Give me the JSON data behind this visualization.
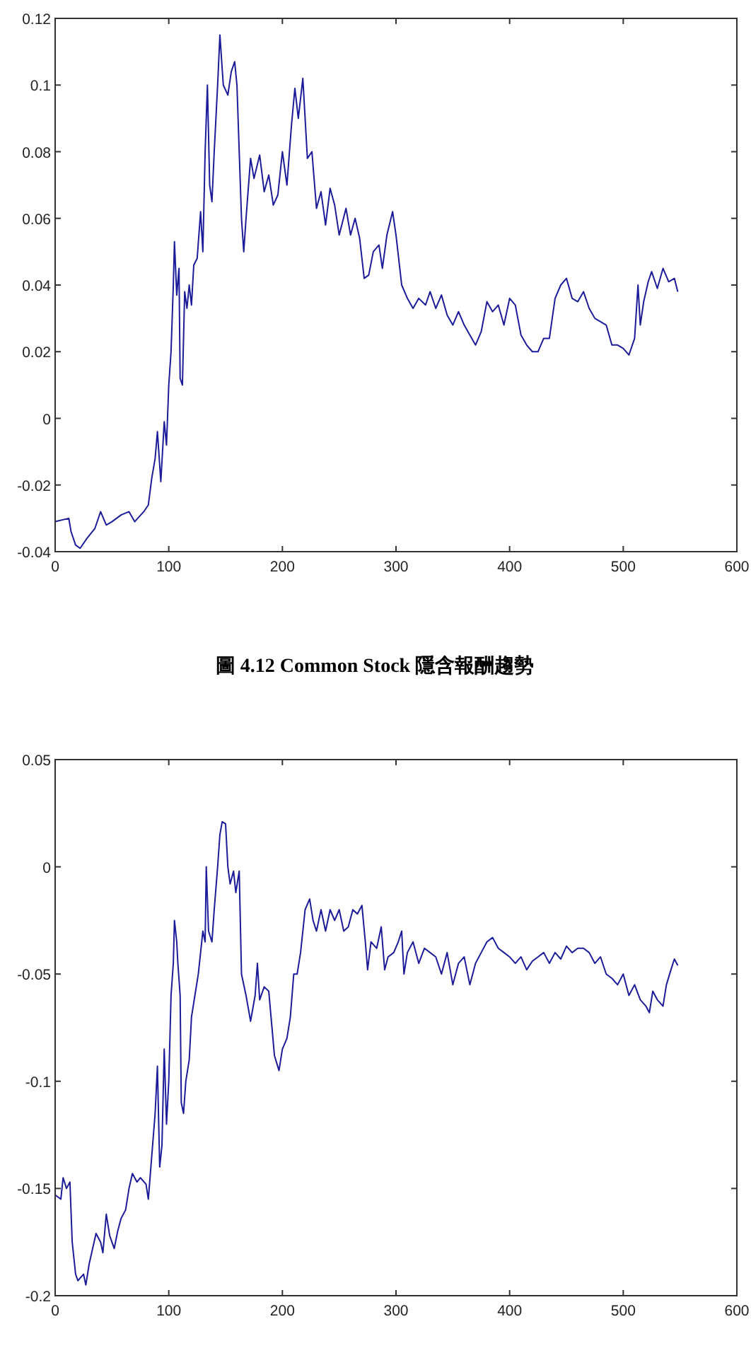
{
  "chart_data": [
    {
      "type": "line",
      "annotations": [
        "圖 4.12 Common Stock 隱含報酬趨勢"
      ],
      "xlim": [
        0,
        600
      ],
      "xticks": [
        0,
        100,
        200,
        300,
        400,
        500,
        600
      ],
      "ylim": [
        -0.04,
        0.12
      ],
      "yticks": [
        -0.04,
        -0.02,
        0,
        0.02,
        0.04,
        0.06,
        0.08,
        0.1,
        0.12
      ],
      "grid": false,
      "line_style": "solid",
      "series": [
        {
          "color": "#1c1c9a",
          "x": [
            0,
            12,
            14,
            18,
            22,
            28,
            35,
            40,
            45,
            50,
            58,
            65,
            70,
            78,
            82,
            85,
            88,
            90,
            93,
            96,
            98,
            100,
            102,
            104,
            105,
            107,
            109,
            110,
            112,
            114,
            116,
            118,
            120,
            122,
            125,
            128,
            130,
            132,
            134,
            136,
            138,
            140,
            143,
            145,
            148,
            152,
            155,
            158,
            160,
            162,
            164,
            166,
            168,
            172,
            175,
            180,
            184,
            188,
            192,
            196,
            200,
            204,
            208,
            211,
            214,
            218,
            222,
            226,
            230,
            234,
            238,
            242,
            246,
            250,
            256,
            260,
            264,
            268,
            272,
            276,
            280,
            285,
            288,
            292,
            297,
            300,
            305,
            310,
            315,
            320,
            326,
            330,
            335,
            340,
            345,
            350,
            355,
            360,
            365,
            370,
            375,
            380,
            385,
            390,
            395,
            400,
            405,
            410,
            415,
            420,
            425,
            430,
            435,
            440,
            445,
            450,
            455,
            460,
            465,
            470,
            475,
            480,
            485,
            490,
            495,
            500,
            505,
            510,
            513,
            515,
            518,
            522,
            525,
            530,
            535,
            540,
            545,
            548
          ],
          "values": [
            -0.031,
            -0.03,
            -0.034,
            -0.038,
            -0.039,
            -0.036,
            -0.033,
            -0.028,
            -0.032,
            -0.031,
            -0.029,
            -0.028,
            -0.031,
            -0.028,
            -0.026,
            -0.018,
            -0.012,
            -0.004,
            -0.019,
            -0.001,
            -0.008,
            0.01,
            0.02,
            0.04,
            0.053,
            0.037,
            0.045,
            0.012,
            0.01,
            0.038,
            0.033,
            0.04,
            0.034,
            0.046,
            0.048,
            0.062,
            0.05,
            0.08,
            0.1,
            0.07,
            0.065,
            0.08,
            0.1,
            0.115,
            0.1,
            0.097,
            0.104,
            0.107,
            0.1,
            0.08,
            0.06,
            0.05,
            0.06,
            0.078,
            0.072,
            0.079,
            0.068,
            0.073,
            0.064,
            0.067,
            0.08,
            0.07,
            0.088,
            0.099,
            0.09,
            0.102,
            0.078,
            0.08,
            0.063,
            0.068,
            0.058,
            0.069,
            0.064,
            0.055,
            0.063,
            0.055,
            0.06,
            0.054,
            0.042,
            0.043,
            0.05,
            0.052,
            0.045,
            0.055,
            0.062,
            0.055,
            0.04,
            0.036,
            0.033,
            0.036,
            0.034,
            0.038,
            0.033,
            0.037,
            0.031,
            0.028,
            0.032,
            0.028,
            0.025,
            0.022,
            0.026,
            0.035,
            0.032,
            0.034,
            0.028,
            0.036,
            0.034,
            0.025,
            0.022,
            0.02,
            0.02,
            0.024,
            0.024,
            0.036,
            0.04,
            0.042,
            0.036,
            0.035,
            0.038,
            0.033,
            0.03,
            0.029,
            0.028,
            0.022,
            0.022,
            0.021,
            0.019,
            0.024,
            0.04,
            0.028,
            0.035,
            0.041,
            0.044,
            0.039,
            0.045,
            0.041,
            0.042,
            0.038
          ]
        }
      ]
    },
    {
      "type": "line",
      "xlim": [
        0,
        600
      ],
      "xticks": [
        0,
        100,
        200,
        300,
        400,
        500,
        600
      ],
      "ylim": [
        -0.2,
        0.05
      ],
      "yticks": [
        -0.2,
        -0.15,
        -0.1,
        -0.05,
        0,
        0.05
      ],
      "grid": false,
      "line_style": "solid",
      "series": [
        {
          "color": "#1c1c9a",
          "x": [
            0,
            5,
            7,
            10,
            13,
            15,
            18,
            20,
            25,
            27,
            30,
            33,
            36,
            40,
            42,
            45,
            48,
            52,
            55,
            58,
            62,
            65,
            68,
            72,
            75,
            80,
            82,
            85,
            88,
            90,
            92,
            94,
            96,
            98,
            100,
            102,
            104,
            105,
            107,
            108,
            110,
            111,
            113,
            115,
            118,
            120,
            123,
            126,
            128,
            130,
            132,
            133,
            135,
            138,
            140,
            143,
            145,
            147,
            150,
            152,
            154,
            157,
            159,
            162,
            164,
            168,
            172,
            176,
            178,
            180,
            184,
            188,
            190,
            193,
            197,
            200,
            204,
            207,
            210,
            213,
            216,
            220,
            224,
            227,
            230,
            234,
            238,
            242,
            246,
            250,
            254,
            258,
            262,
            266,
            270,
            273,
            275,
            278,
            283,
            287,
            290,
            293,
            298,
            302,
            305,
            307,
            310,
            315,
            320,
            325,
            330,
            335,
            340,
            345,
            350,
            355,
            360,
            365,
            370,
            375,
            380,
            385,
            390,
            395,
            400,
            405,
            410,
            415,
            420,
            425,
            430,
            435,
            440,
            445,
            450,
            455,
            460,
            465,
            470,
            475,
            480,
            485,
            490,
            495,
            500,
            505,
            510,
            515,
            520,
            523,
            526,
            530,
            535,
            538,
            542,
            545,
            548
          ],
          "values": [
            -0.153,
            -0.155,
            -0.145,
            -0.15,
            -0.147,
            -0.175,
            -0.19,
            -0.193,
            -0.19,
            -0.195,
            -0.185,
            -0.178,
            -0.171,
            -0.175,
            -0.18,
            -0.162,
            -0.172,
            -0.178,
            -0.17,
            -0.164,
            -0.16,
            -0.15,
            -0.143,
            -0.147,
            -0.145,
            -0.148,
            -0.155,
            -0.135,
            -0.115,
            -0.093,
            -0.14,
            -0.13,
            -0.085,
            -0.12,
            -0.1,
            -0.06,
            -0.045,
            -0.025,
            -0.035,
            -0.045,
            -0.06,
            -0.11,
            -0.115,
            -0.1,
            -0.09,
            -0.07,
            -0.06,
            -0.05,
            -0.04,
            -0.03,
            -0.035,
            0.0,
            -0.03,
            -0.035,
            -0.02,
            0.0,
            0.015,
            0.021,
            0.02,
            0.0,
            -0.008,
            -0.002,
            -0.012,
            -0.002,
            -0.05,
            -0.06,
            -0.072,
            -0.06,
            -0.045,
            -0.062,
            -0.056,
            -0.058,
            -0.07,
            -0.088,
            -0.095,
            -0.085,
            -0.08,
            -0.07,
            -0.05,
            -0.05,
            -0.04,
            -0.02,
            -0.015,
            -0.025,
            -0.03,
            -0.02,
            -0.03,
            -0.02,
            -0.025,
            -0.02,
            -0.03,
            -0.028,
            -0.02,
            -0.022,
            -0.018,
            -0.035,
            -0.048,
            -0.035,
            -0.038,
            -0.028,
            -0.048,
            -0.042,
            -0.04,
            -0.035,
            -0.03,
            -0.05,
            -0.04,
            -0.035,
            -0.045,
            -0.038,
            -0.04,
            -0.042,
            -0.05,
            -0.04,
            -0.055,
            -0.045,
            -0.042,
            -0.055,
            -0.045,
            -0.04,
            -0.035,
            -0.033,
            -0.038,
            -0.04,
            -0.042,
            -0.045,
            -0.042,
            -0.048,
            -0.044,
            -0.042,
            -0.04,
            -0.045,
            -0.04,
            -0.043,
            -0.037,
            -0.04,
            -0.038,
            -0.038,
            -0.04,
            -0.045,
            -0.042,
            -0.05,
            -0.052,
            -0.055,
            -0.05,
            -0.06,
            -0.055,
            -0.062,
            -0.065,
            -0.068,
            -0.058,
            -0.062,
            -0.065,
            -0.055,
            -0.048,
            -0.043,
            -0.046
          ]
        }
      ]
    }
  ]
}
